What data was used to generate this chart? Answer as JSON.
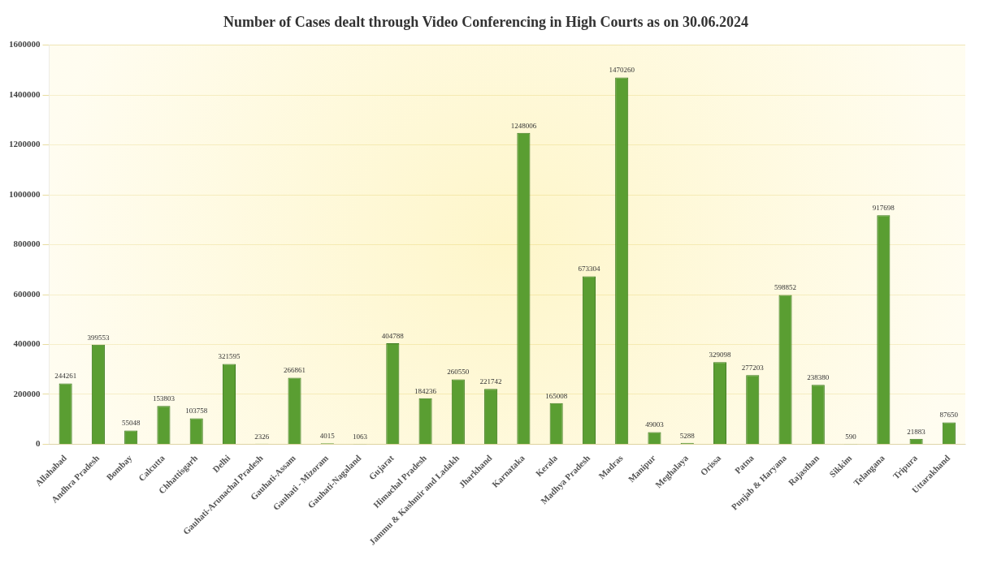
{
  "chart_data": {
    "type": "bar",
    "title": "Number of Cases dealt through Video Conferencing in High Courts as on 30.06.2024",
    "categories": [
      "Allahabad",
      "Andhra Pradesh",
      "Bombay",
      "Calcutta",
      "Chhattisgarh",
      "Delhi",
      "Gauhati-Arunachal Pradesh",
      "Gauhati-Assam",
      "Gauhati - Mizoram",
      "Gauhati-Nagaland",
      "Gujarat",
      "Himachal Pradesh",
      "Jammu & Kashmir and Ladakh",
      "Jharkhand",
      "Karnataka",
      "Kerala",
      "Madhya Pradesh",
      "Madras",
      "Manipur",
      "Meghalaya",
      "Orissa",
      "Patna",
      "Punjab & Haryana",
      "Rajasthan",
      "Sikkim",
      "Telangana",
      "Tripura",
      "Uttarakhand"
    ],
    "values": [
      244261,
      399553,
      55048,
      153803,
      103758,
      321595,
      2326,
      266861,
      4015,
      1063,
      404788,
      184236,
      260550,
      221742,
      1248006,
      165008,
      673304,
      1470260,
      49003,
      5288,
      329098,
      277203,
      598852,
      238380,
      590,
      917698,
      21883,
      87650
    ],
    "color": "#5a9e32",
    "ylim": [
      0,
      1600000
    ],
    "yticks": [
      0,
      200000,
      400000,
      600000,
      800000,
      1000000,
      1200000,
      1400000,
      1600000
    ],
    "grid": "y",
    "data_labels": true,
    "legend": false
  }
}
